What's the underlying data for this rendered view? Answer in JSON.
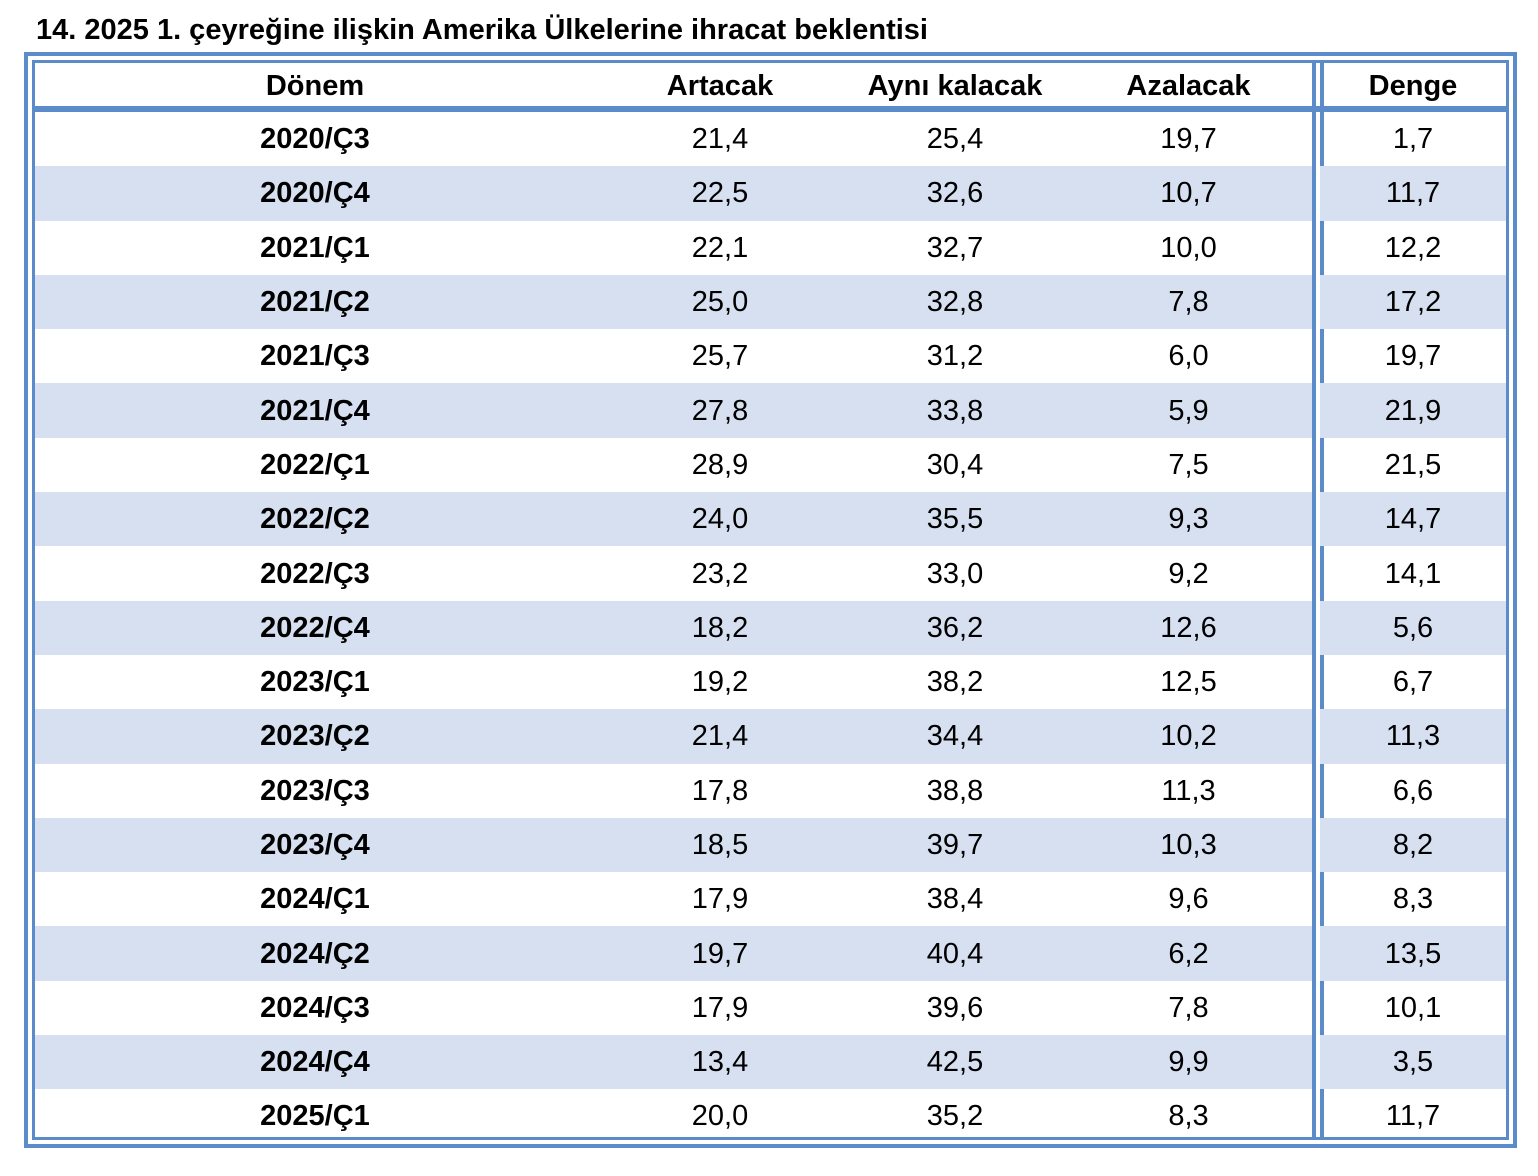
{
  "title": "14. 2025 1. çeyreğine ilişkin Amerika Ülkelerine ihracat beklentisi",
  "headers": {
    "period": "Dönem",
    "increase": "Artacak",
    "same": "Aynı kalacak",
    "decrease": "Azalacak",
    "balance": "Denge"
  },
  "accent_color": "#5b8cc9",
  "stripe_color": "#d6e0f0",
  "rows": [
    {
      "period": "2020/Ç3",
      "increase": "21,4",
      "same": "25,4",
      "decrease": "19,7",
      "balance": "1,7"
    },
    {
      "period": "2020/Ç4",
      "increase": "22,5",
      "same": "32,6",
      "decrease": "10,7",
      "balance": "11,7"
    },
    {
      "period": "2021/Ç1",
      "increase": "22,1",
      "same": "32,7",
      "decrease": "10,0",
      "balance": "12,2"
    },
    {
      "period": "2021/Ç2",
      "increase": "25,0",
      "same": "32,8",
      "decrease": "7,8",
      "balance": "17,2"
    },
    {
      "period": "2021/Ç3",
      "increase": "25,7",
      "same": "31,2",
      "decrease": "6,0",
      "balance": "19,7"
    },
    {
      "period": "2021/Ç4",
      "increase": "27,8",
      "same": "33,8",
      "decrease": "5,9",
      "balance": "21,9"
    },
    {
      "period": "2022/Ç1",
      "increase": "28,9",
      "same": "30,4",
      "decrease": "7,5",
      "balance": "21,5"
    },
    {
      "period": "2022/Ç2",
      "increase": "24,0",
      "same": "35,5",
      "decrease": "9,3",
      "balance": "14,7"
    },
    {
      "period": "2022/Ç3",
      "increase": "23,2",
      "same": "33,0",
      "decrease": "9,2",
      "balance": "14,1"
    },
    {
      "period": "2022/Ç4",
      "increase": "18,2",
      "same": "36,2",
      "decrease": "12,6",
      "balance": "5,6"
    },
    {
      "period": "2023/Ç1",
      "increase": "19,2",
      "same": "38,2",
      "decrease": "12,5",
      "balance": "6,7"
    },
    {
      "period": "2023/Ç2",
      "increase": "21,4",
      "same": "34,4",
      "decrease": "10,2",
      "balance": "11,3"
    },
    {
      "period": "2023/Ç3",
      "increase": "17,8",
      "same": "38,8",
      "decrease": "11,3",
      "balance": "6,6"
    },
    {
      "period": "2023/Ç4",
      "increase": "18,5",
      "same": "39,7",
      "decrease": "10,3",
      "balance": "8,2"
    },
    {
      "period": "2024/Ç1",
      "increase": "17,9",
      "same": "38,4",
      "decrease": "9,6",
      "balance": "8,3"
    },
    {
      "period": "2024/Ç2",
      "increase": "19,7",
      "same": "40,4",
      "decrease": "6,2",
      "balance": "13,5"
    },
    {
      "period": "2024/Ç3",
      "increase": "17,9",
      "same": "39,6",
      "decrease": "7,8",
      "balance": "10,1"
    },
    {
      "period": "2024/Ç4",
      "increase": "13,4",
      "same": "42,5",
      "decrease": "9,9",
      "balance": "3,5"
    },
    {
      "period": "2025/Ç1",
      "increase": "20,0",
      "same": "35,2",
      "decrease": "8,3",
      "balance": "11,7"
    }
  ]
}
